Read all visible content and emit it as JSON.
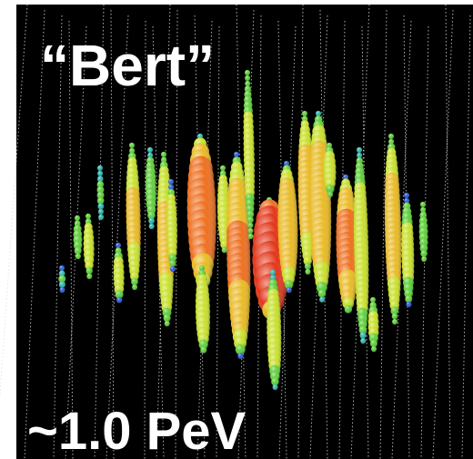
{
  "labels": {
    "name": "“Bert”",
    "energy": "~1.0 PeV"
  }
}
